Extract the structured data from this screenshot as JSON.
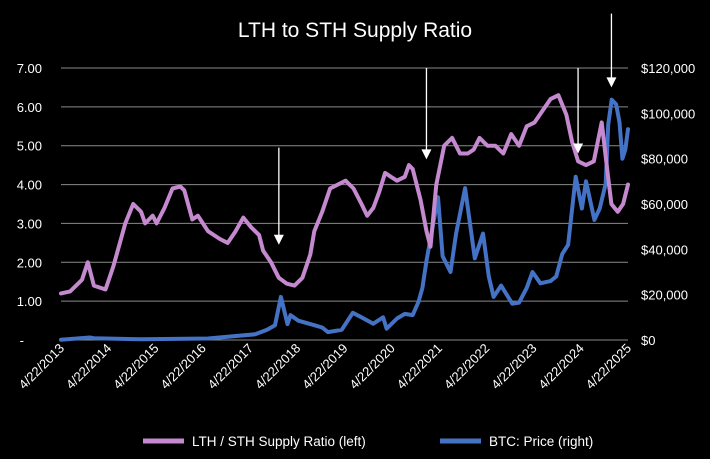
{
  "chart_data": {
    "type": "line",
    "title": "LTH to STH Supply Ratio",
    "colors": {
      "background": "#000000",
      "text": "#ffffff",
      "grid": "#8a8a8a",
      "lth_sth": "#c589cf",
      "btc": "#4472c4",
      "arrows": "#ffffff"
    },
    "grid": true,
    "legend_position": "bottom",
    "left_axis": {
      "range": [
        0,
        7
      ],
      "ticks": [
        "-",
        "1.00",
        "2.00",
        "3.00",
        "4.00",
        "5.00",
        "6.00",
        "7.00"
      ]
    },
    "right_axis": {
      "range": [
        0,
        120000
      ],
      "ticks": [
        "$0",
        "$20,000",
        "$40,000",
        "$60,000",
        "$80,000",
        "$100,000",
        "$120,000"
      ]
    },
    "x_axis": {
      "range": [
        "2013-04-22",
        "2025-04-22"
      ],
      "tick_labels": [
        "4/22/2013",
        "4/22/2014",
        "4/22/2015",
        "4/22/2016",
        "4/22/2017",
        "4/22/2018",
        "4/22/2019",
        "4/22/2020",
        "4/22/2021",
        "4/22/2022",
        "4/22/2023",
        "4/22/2024",
        "4/22/2025"
      ]
    },
    "series": [
      {
        "name": "LTH / STH Supply Ratio (left)",
        "axis": "left",
        "x": [
          "2013-04-22",
          "2013-07-01",
          "2013-10-01",
          "2013-11-15",
          "2014-01-01",
          "2014-04-01",
          "2014-06-01",
          "2014-09-01",
          "2014-11-01",
          "2015-01-01",
          "2015-02-01",
          "2015-04-01",
          "2015-05-01",
          "2015-07-01",
          "2015-09-01",
          "2015-11-01",
          "2015-12-01",
          "2016-02-01",
          "2016-03-15",
          "2016-06-01",
          "2016-09-01",
          "2016-11-01",
          "2017-01-01",
          "2017-03-01",
          "2017-05-01",
          "2017-07-01",
          "2017-08-01",
          "2017-10-01",
          "2017-12-01",
          "2018-02-01",
          "2018-04-01",
          "2018-06-01",
          "2018-08-01",
          "2018-09-01",
          "2018-11-01",
          "2019-01-01",
          "2019-03-01",
          "2019-05-01",
          "2019-07-01",
          "2019-09-01",
          "2019-10-15",
          "2019-12-01",
          "2020-01-15",
          "2020-03-01",
          "2020-04-15",
          "2020-06-01",
          "2020-08-01",
          "2020-09-01",
          "2020-10-01",
          "2020-12-01",
          "2021-01-15",
          "2021-02-15",
          "2021-04-01",
          "2021-06-01",
          "2021-08-01",
          "2021-10-01",
          "2021-12-01",
          "2022-01-15",
          "2022-03-01",
          "2022-05-01",
          "2022-07-01",
          "2022-09-01",
          "2022-11-01",
          "2023-01-01",
          "2023-03-01",
          "2023-05-01",
          "2023-07-01",
          "2023-09-01",
          "2023-11-01",
          "2024-01-01",
          "2024-02-15",
          "2024-04-01",
          "2024-06-01",
          "2024-08-01",
          "2024-10-01",
          "2024-11-15",
          "2024-12-15",
          "2025-02-01",
          "2025-03-15",
          "2025-04-22"
        ],
        "values": [
          1.2,
          1.25,
          1.55,
          2.0,
          1.4,
          1.3,
          1.9,
          3.0,
          3.5,
          3.3,
          3.0,
          3.2,
          3.0,
          3.4,
          3.9,
          3.95,
          3.85,
          3.1,
          3.2,
          2.8,
          2.6,
          2.5,
          2.8,
          3.15,
          2.9,
          2.7,
          2.3,
          2.0,
          1.6,
          1.45,
          1.4,
          1.6,
          2.2,
          2.8,
          3.3,
          3.9,
          4.0,
          4.1,
          3.9,
          3.5,
          3.2,
          3.4,
          3.8,
          4.3,
          4.2,
          4.1,
          4.2,
          4.5,
          4.4,
          3.6,
          2.8,
          2.4,
          4.0,
          5.0,
          5.2,
          4.8,
          4.8,
          4.9,
          5.2,
          5.0,
          5.0,
          4.8,
          5.3,
          5.0,
          5.5,
          5.6,
          5.9,
          6.2,
          6.3,
          5.8,
          5.1,
          4.6,
          4.5,
          4.6,
          5.6,
          4.3,
          3.5,
          3.3,
          3.5,
          4.0
        ]
      },
      {
        "name": "BTC: Price (right)",
        "axis": "right",
        "x": [
          "2013-04-22",
          "2013-11-30",
          "2014-01-01",
          "2015-01-01",
          "2016-06-01",
          "2017-06-01",
          "2017-09-01",
          "2017-11-01",
          "2017-12-17",
          "2018-02-06",
          "2018-03-01",
          "2018-05-01",
          "2018-08-01",
          "2018-11-01",
          "2018-12-15",
          "2019-04-01",
          "2019-06-26",
          "2019-09-01",
          "2019-12-01",
          "2020-02-15",
          "2020-03-13",
          "2020-06-01",
          "2020-08-01",
          "2020-10-01",
          "2020-11-15",
          "2020-12-15",
          "2021-01-15",
          "2021-04-14",
          "2021-05-20",
          "2021-07-20",
          "2021-09-01",
          "2021-11-10",
          "2022-01-24",
          "2022-03-28",
          "2022-05-12",
          "2022-06-18",
          "2022-08-15",
          "2022-11-10",
          "2023-01-01",
          "2023-03-01",
          "2023-04-15",
          "2023-06-15",
          "2023-09-01",
          "2023-10-15",
          "2023-12-01",
          "2024-01-15",
          "2024-03-14",
          "2024-05-01",
          "2024-06-01",
          "2024-08-05",
          "2024-09-15",
          "2024-11-01",
          "2024-11-20",
          "2024-12-17",
          "2025-01-20",
          "2025-02-15",
          "2025-03-10",
          "2025-04-01",
          "2025-04-22"
        ],
        "values": [
          150,
          1100,
          800,
          300,
          650,
          2500,
          4500,
          6500,
          19000,
          7000,
          11000,
          8500,
          7000,
          5500,
          3500,
          4500,
          12000,
          10000,
          7200,
          10000,
          5000,
          9500,
          11500,
          11000,
          17000,
          23000,
          35000,
          63000,
          37000,
          30000,
          47000,
          67000,
          36000,
          47000,
          28000,
          19000,
          24000,
          16000,
          16500,
          23000,
          30000,
          25000,
          26000,
          28000,
          38000,
          42000,
          72000,
          58000,
          70000,
          53000,
          58000,
          69000,
          95000,
          106000,
          104000,
          96000,
          80000,
          84000,
          93000
        ]
      }
    ],
    "annotations": {
      "arrows": [
        {
          "date": "2017-12-01",
          "from_left": 4.95,
          "to_left": 2.45
        },
        {
          "date": "2021-01-15",
          "from_left": 7.0,
          "to_left": 4.65
        },
        {
          "date": "2024-04-01",
          "from_left": 7.0,
          "to_left": 4.8
        },
        {
          "date": "2024-12-15",
          "from_left": 8.4,
          "to_left": 6.5
        }
      ]
    }
  }
}
